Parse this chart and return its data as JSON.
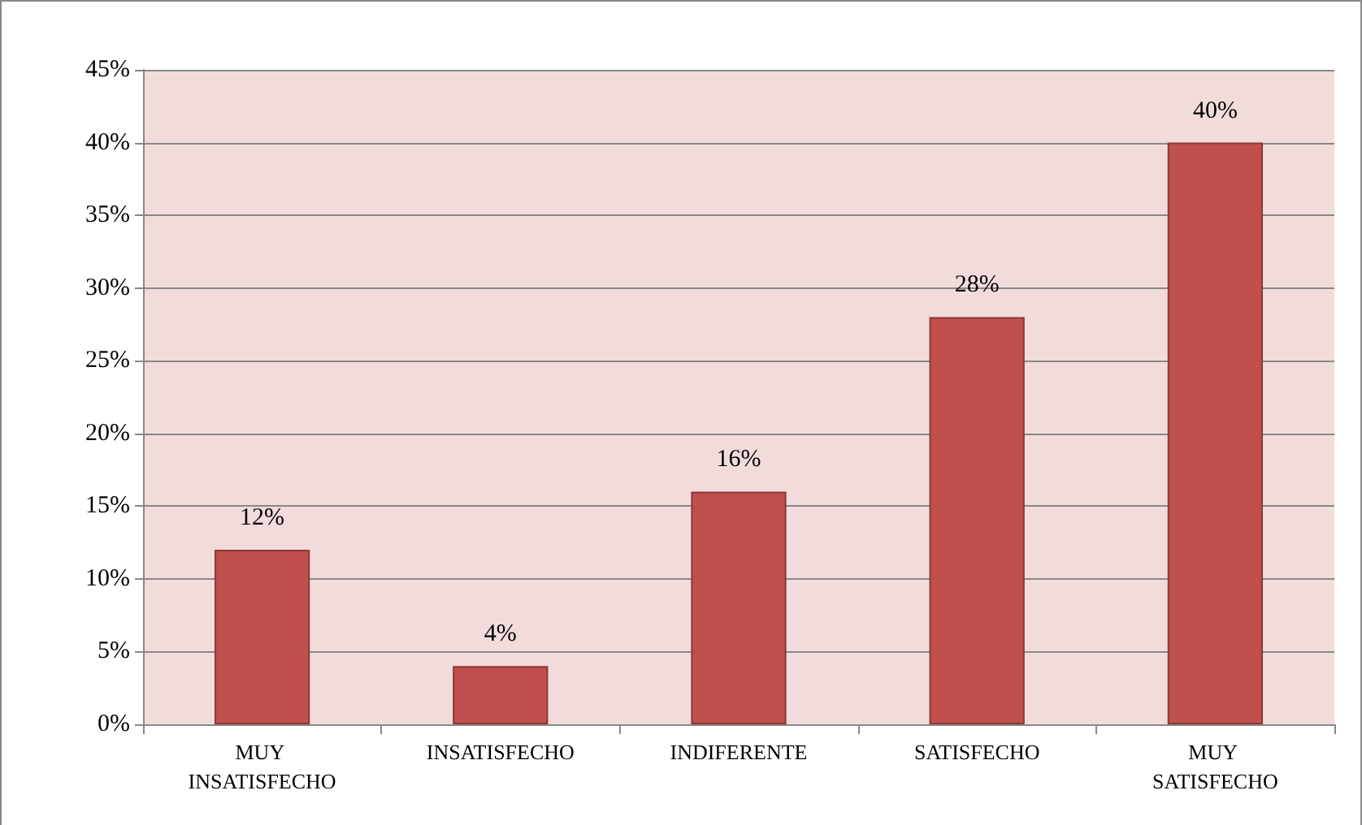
{
  "chart_data": {
    "type": "bar",
    "categories": [
      "MUY INSATISFECHO",
      "INSATISFECHO",
      "INDIFERENTE",
      "SATISFECHO",
      "MUY SATISFECHO"
    ],
    "values": [
      12,
      4,
      16,
      28,
      40
    ],
    "value_labels": [
      "12%",
      "4%",
      "16%",
      "28%",
      "40%"
    ],
    "color": "#c0504d",
    "ylim": [
      0,
      45
    ],
    "yticks": [
      {
        "value": 0,
        "label": "0%"
      },
      {
        "value": 5,
        "label": "5%"
      },
      {
        "value": 10,
        "label": "10%"
      },
      {
        "value": 15,
        "label": "15%"
      },
      {
        "value": 20,
        "label": "20%"
      },
      {
        "value": 25,
        "label": "25%"
      },
      {
        "value": 30,
        "label": "30%"
      },
      {
        "value": 35,
        "label": "35%"
      },
      {
        "value": 40,
        "label": "40%"
      },
      {
        "value": 45,
        "label": "45%"
      }
    ],
    "grid": "y"
  }
}
